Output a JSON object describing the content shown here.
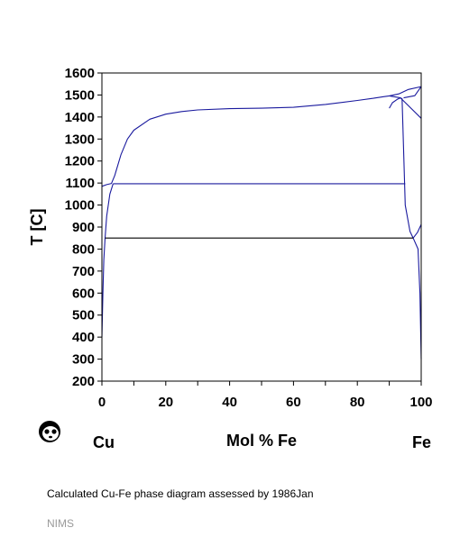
{
  "chart_data": {
    "type": "line",
    "title": "",
    "xlabel": "Mol % Fe",
    "ylabel": "T [C]",
    "xlim": [
      0,
      100
    ],
    "ylim": [
      200,
      1600
    ],
    "x_ticks": [
      0,
      20,
      40,
      60,
      80,
      100
    ],
    "y_ticks": [
      200,
      300,
      400,
      500,
      600,
      700,
      800,
      900,
      1000,
      1100,
      1200,
      1300,
      1400,
      1500,
      1600
    ],
    "grid": false,
    "left_component": "Cu",
    "right_component": "Fe",
    "series": [
      {
        "x": [
          0,
          1.5,
          3,
          4,
          6,
          8,
          10,
          15,
          20,
          25,
          30,
          40,
          50,
          60,
          70,
          80,
          85,
          88,
          90,
          93,
          96,
          100
        ],
        "y": [
          1085,
          1093,
          1098,
          1134,
          1230,
          1300,
          1340,
          1390,
          1413,
          1425,
          1432,
          1438,
          1440,
          1444,
          1457,
          1475,
          1485,
          1492,
          1496,
          1505,
          1525,
          1538
        ]
      },
      {
        "x": [
          0,
          0.3,
          0.6,
          1,
          1.5,
          2.5,
          3.5
        ],
        "y": [
          400,
          600,
          750,
          850,
          950,
          1050,
          1097
        ]
      },
      {
        "x": [
          90,
          91,
          92.5,
          93.5,
          94,
          95,
          96.5,
          97.5
        ],
        "y": [
          1440,
          1465,
          1480,
          1487,
          1483,
          1000,
          880,
          850
        ]
      },
      {
        "x": [
          90,
          93.5,
          100
        ],
        "y": [
          1496,
          1487,
          1394
        ]
      },
      {
        "x": [
          94.5,
          98,
          100
        ],
        "y": [
          1487,
          1497,
          1538
        ]
      },
      {
        "x": [
          97.5,
          98.8,
          100
        ],
        "y": [
          850,
          875,
          912
        ]
      },
      {
        "x": [
          97.5,
          99,
          99.6,
          100
        ],
        "y": [
          850,
          800,
          600,
          300
        ]
      },
      {
        "x": [
          3.5,
          95
        ],
        "y": [
          1097,
          1097
        ]
      },
      {
        "x": [
          1,
          97.5
        ],
        "y": [
          850,
          850
        ]
      }
    ]
  },
  "caption": "Calculated Cu-Fe phase diagram assessed by 1986Jan",
  "footer": "NIMS",
  "colors": {
    "curve": "#1a1a9e",
    "eutectoid_line": "#000000",
    "axis": "#000000"
  }
}
